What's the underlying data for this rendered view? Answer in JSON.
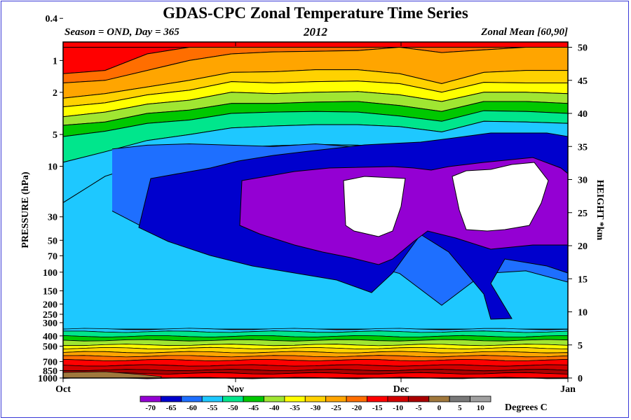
{
  "title": "GDAS-CPC Zonal Temperature Time Series",
  "subtitle_left": "Season = OND, Day = 365",
  "subtitle_center": "2012",
  "subtitle_right": "Zonal Mean [60,90]",
  "chart_data": {
    "type": "heatmap",
    "xlabel": "",
    "ylabel": "PRESSURE (hPa)",
    "y2label": "HEIGHT *km",
    "x_ticks": [
      "Oct",
      "Nov",
      "Dec",
      "Jan"
    ],
    "y_ticks": [
      "0.4",
      "1",
      "2",
      "5",
      "10",
      "30",
      "50",
      "70",
      "100",
      "150",
      "200",
      "250",
      "300",
      "400",
      "500",
      "700",
      "850",
      "1000"
    ],
    "y_tick_values": [
      0.4,
      1,
      2,
      5,
      10,
      30,
      50,
      70,
      100,
      150,
      200,
      250,
      300,
      400,
      500,
      700,
      850,
      1000
    ],
    "height_ticks": [
      "0",
      "5",
      "10",
      "15",
      "20",
      "25",
      "30",
      "35",
      "40",
      "45",
      "50"
    ],
    "ylim_hpa": [
      1000,
      0.4
    ],
    "height_range_km": [
      0,
      50
    ],
    "colorbar_label": "Degrees C",
    "colorbar_ticks": [
      "-70",
      "-65",
      "-60",
      "-55",
      "-50",
      "-45",
      "-40",
      "-35",
      "-30",
      "-25",
      "-20",
      "-15",
      "-10",
      "-5",
      "0",
      "5",
      "10"
    ],
    "colorbar_colors": [
      "#9400d3",
      "#0000cd",
      "#1e6fff",
      "#1ec8ff",
      "#00e68c",
      "#00c800",
      "#a0e632",
      "#ffff00",
      "#ffd200",
      "#ffa500",
      "#ff6e00",
      "#ff0000",
      "#d20000",
      "#aa0000",
      "#a0783c",
      "#787878",
      "#a0a0a0"
    ],
    "levels_km": [
      50,
      45,
      40,
      35,
      30,
      25,
      20,
      15,
      10,
      5,
      0
    ],
    "bands": [
      {
        "color": "#ff0000",
        "top": [
          50,
          50,
          50,
          50,
          50,
          50,
          50,
          50,
          50,
          50,
          50,
          50,
          50
        ],
        "bottom": [
          46,
          46.5,
          49,
          50,
          50,
          50,
          50,
          50,
          50,
          50,
          50,
          50,
          50
        ]
      },
      {
        "color": "#ff6e00",
        "top": [
          46,
          46.5,
          49,
          50,
          50,
          50,
          50,
          50,
          50,
          50,
          50,
          50,
          50
        ],
        "bottom": [
          44.6,
          45,
          46.5,
          48,
          49,
          49.3,
          49.4,
          49.5,
          50,
          49.2,
          49.6,
          50,
          50
        ]
      },
      {
        "color": "#ffa500",
        "top": [
          44.6,
          45,
          46.5,
          48,
          49,
          49.3,
          49.4,
          49.5,
          50,
          49.2,
          49.6,
          50,
          50
        ],
        "bottom": [
          42.3,
          43,
          44,
          45,
          46.2,
          46.3,
          46.6,
          46.6,
          46,
          44.5,
          46.2,
          46.5,
          46.5
        ]
      },
      {
        "color": "#ffd200",
        "top": [
          42.3,
          43,
          44,
          45,
          46.2,
          46.3,
          46.6,
          46.6,
          46,
          44.5,
          46.2,
          46.5,
          46.5
        ],
        "bottom": [
          41,
          41.6,
          42.8,
          43.5,
          44.8,
          44.6,
          44.8,
          44.9,
          44.5,
          43.2,
          44.7,
          44.6,
          44.6
        ]
      },
      {
        "color": "#ffff00",
        "top": [
          41,
          41.6,
          42.8,
          43.5,
          44.8,
          44.6,
          44.8,
          44.9,
          44.5,
          43.2,
          44.7,
          44.6,
          44.6
        ],
        "bottom": [
          39.5,
          40.2,
          41.4,
          42,
          43.2,
          43,
          43.2,
          43.3,
          42.8,
          41.8,
          43.2,
          43.2,
          43
        ]
      },
      {
        "color": "#a0e632",
        "top": [
          39.5,
          40.2,
          41.4,
          42,
          43.2,
          43,
          43.2,
          43.3,
          42.8,
          41.8,
          43.2,
          43.2,
          43
        ],
        "bottom": [
          38.2,
          38.7,
          40,
          40.5,
          41.5,
          41.5,
          41.7,
          41.8,
          41.2,
          40.3,
          41.8,
          41.8,
          41.5
        ]
      },
      {
        "color": "#00c800",
        "top": [
          38.2,
          38.7,
          40,
          40.5,
          41.5,
          41.5,
          41.7,
          41.8,
          41.2,
          40.3,
          41.8,
          41.8,
          41.5
        ],
        "bottom": [
          36.5,
          37.3,
          38.5,
          39,
          40,
          40.2,
          40.3,
          40.2,
          39.6,
          38.8,
          40.4,
          40.3,
          40
        ]
      },
      {
        "color": "#00e68c",
        "top": [
          36.5,
          37.3,
          38.5,
          39,
          40,
          40.2,
          40.3,
          40.2,
          39.6,
          38.8,
          40.4,
          40.3,
          40
        ],
        "bottom": [
          32.6,
          34.2,
          35.9,
          36.8,
          37.8,
          38.1,
          38.3,
          38.3,
          38,
          37.2,
          38.8,
          38.7,
          38.5
        ]
      },
      {
        "color": "#1ec8ff",
        "top": [
          32.6,
          34.2,
          35.9,
          36.8,
          37.8,
          38.1,
          38.3,
          38.3,
          38,
          37.2,
          38.8,
          38.7,
          38.5
        ],
        "bottom": [
          26.5,
          30.5,
          32.5,
          34.2,
          34.8,
          35.1,
          35.3,
          35.2,
          34.8,
          33.5,
          36.4,
          36.3,
          35.8
        ]
      }
    ],
    "purple_outline_km": [
      [
        25.2,
        26.8,
        30,
        32,
        33,
        34,
        33.5,
        35,
        36,
        35,
        33
      ],
      [
        26.5,
        24.5,
        23.5,
        20,
        17.5,
        20,
        22,
        20,
        20.5,
        19.8,
        19
      ]
    ],
    "white_patch_km": [
      [
        29.8,
        30.5,
        30.2,
        29.5,
        24.5,
        24
      ],
      [
        29.4,
        30.6,
        31.3,
        31.8,
        31.5,
        24.5,
        23.5
      ]
    ],
    "colorbar_under": "#9400d3"
  }
}
